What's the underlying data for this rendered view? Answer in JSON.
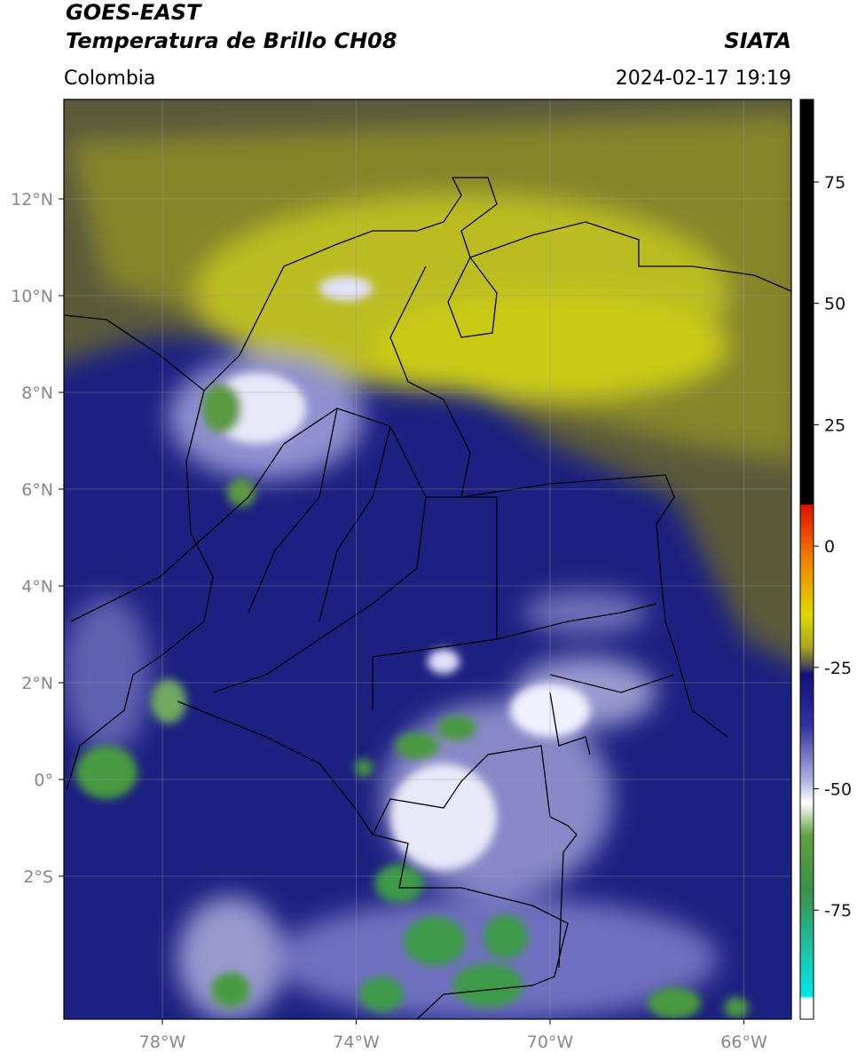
{
  "header": {
    "title_line1": "GOES-EAST",
    "title_line2": "Temperatura de Brillo CH08",
    "region": "Colombia",
    "source": "SIATA",
    "timestamp": "2024-02-17 19:19"
  },
  "map": {
    "lat_labels": [
      "12°N",
      "10°N",
      "8°N",
      "6°N",
      "4°N",
      "2°N",
      "0°",
      "2°S"
    ],
    "lon_labels": [
      "78°W",
      "74°W",
      "70°W",
      "66°W"
    ]
  },
  "colorbar": {
    "ticks": [
      75,
      50,
      25,
      0,
      -25,
      -50,
      -75
    ]
  }
}
